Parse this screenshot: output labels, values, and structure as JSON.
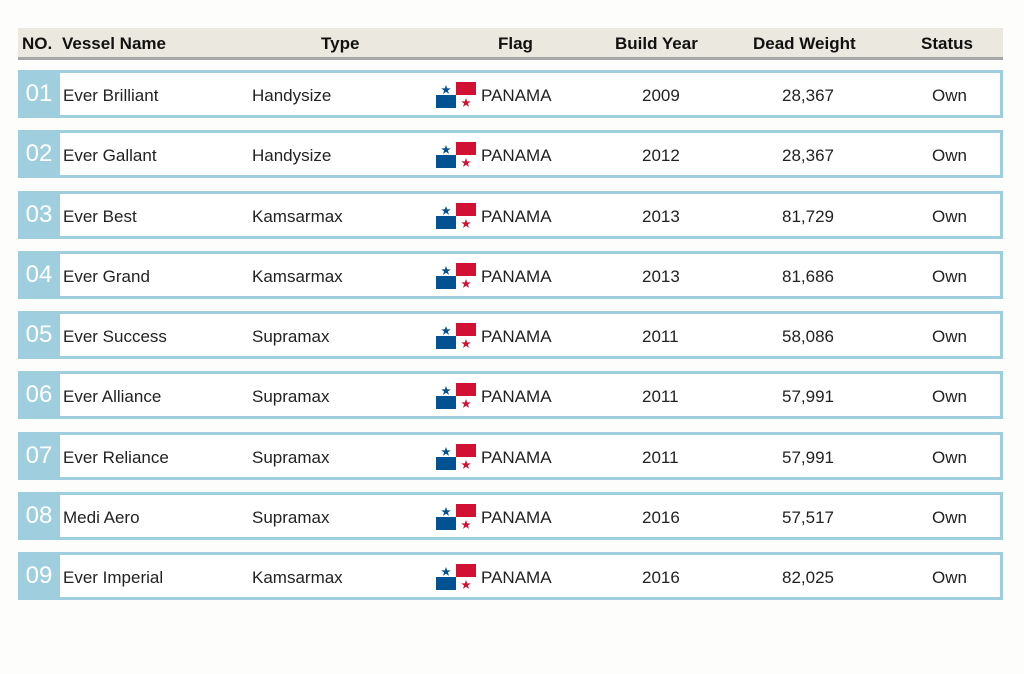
{
  "header": {
    "no": "NO.",
    "vessel_name": "Vessel Name",
    "type": "Type",
    "flag": "Flag",
    "build_year": "Build Year",
    "dead_weight": "Dead Weight",
    "status": "Status"
  },
  "colors": {
    "row_accent": "#9fcfdf",
    "header_bg": "#ebe8df",
    "flag_red": "#d21034",
    "flag_blue": "#005293"
  },
  "vessels": [
    {
      "no": "01",
      "name": "Ever Brilliant",
      "type": "Handysize",
      "flag_icon": "panama-flag-icon",
      "flag": "PANAMA",
      "year": "2009",
      "dwt": "28,367",
      "status": "Own"
    },
    {
      "no": "02",
      "name": "Ever Gallant",
      "type": "Handysize",
      "flag_icon": "panama-flag-icon",
      "flag": "PANAMA",
      "year": "2012",
      "dwt": "28,367",
      "status": "Own"
    },
    {
      "no": "03",
      "name": "Ever Best",
      "type": "Kamsarmax",
      "flag_icon": "panama-flag-icon",
      "flag": "PANAMA",
      "year": "2013",
      "dwt": "81,729",
      "status": "Own"
    },
    {
      "no": "04",
      "name": "Ever Grand",
      "type": "Kamsarmax",
      "flag_icon": "panama-flag-icon",
      "flag": "PANAMA",
      "year": "2013",
      "dwt": "81,686",
      "status": "Own"
    },
    {
      "no": "05",
      "name": "Ever Success",
      "type": "Supramax",
      "flag_icon": "panama-flag-icon",
      "flag": "PANAMA",
      "year": "2011",
      "dwt": "58,086",
      "status": "Own"
    },
    {
      "no": "06",
      "name": "Ever Alliance",
      "type": "Supramax",
      "flag_icon": "panama-flag-icon",
      "flag": "PANAMA",
      "year": "2011",
      "dwt": "57,991",
      "status": "Own"
    },
    {
      "no": "07",
      "name": "Ever Reliance",
      "type": "Supramax",
      "flag_icon": "panama-flag-icon",
      "flag": "PANAMA",
      "year": "2011",
      "dwt": "57,991",
      "status": "Own"
    },
    {
      "no": "08",
      "name": "Medi Aero",
      "type": "Supramax",
      "flag_icon": "panama-flag-icon",
      "flag": "PANAMA",
      "year": "2016",
      "dwt": "57,517",
      "status": "Own"
    },
    {
      "no": "09",
      "name": "Ever Imperial",
      "type": "Kamsarmax",
      "flag_icon": "panama-flag-icon",
      "flag": "PANAMA",
      "year": "2016",
      "dwt": "82,025",
      "status": "Own"
    }
  ]
}
